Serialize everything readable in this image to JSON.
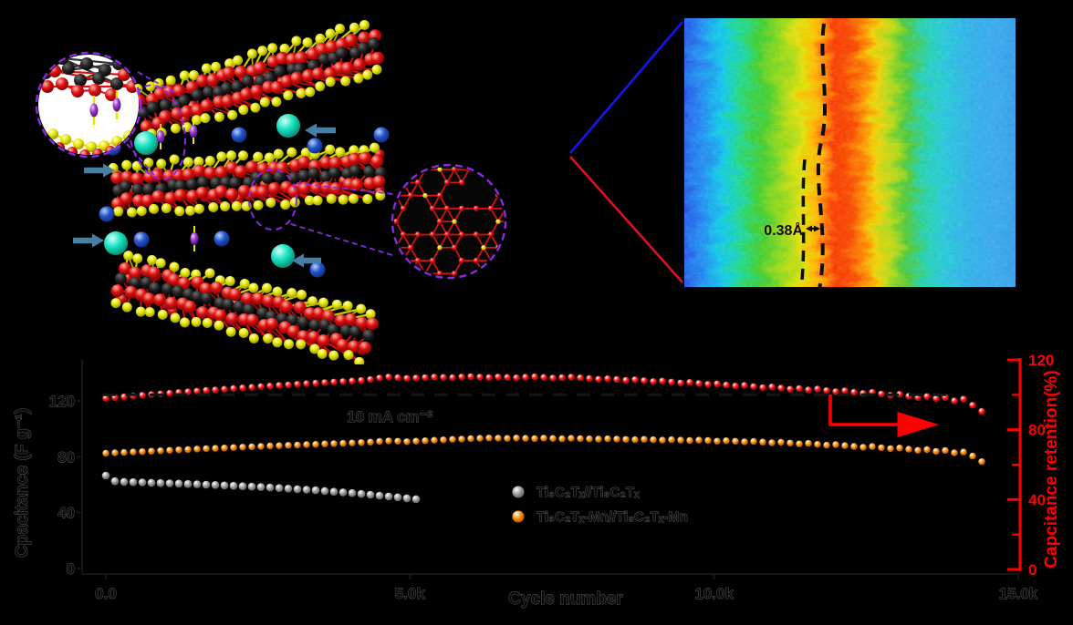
{
  "figure": {
    "background": "#000000",
    "description": "composite-figure-structure-heatmap-cycling-chart"
  },
  "structure_panel": {
    "atom_colors": {
      "red": "#e01010",
      "yellow": "#e6e600",
      "black": "#1f1f1f",
      "cyan": "#17e3c2",
      "blue": "#2255cc",
      "purple": "#9932cc"
    },
    "arrow_color": "#4a7fa5",
    "inset_border_color": "#8a2be2"
  },
  "heatmap_panel": {
    "annotation": "0.38Å",
    "dashed_line_color": "#0d0d0d",
    "zoom_line_top_color": "#1515ee",
    "zoom_line_bottom_color": "#dd1122",
    "gradient_stops": [
      [
        0.0,
        "#1040c8"
      ],
      [
        0.05,
        "#2255e8"
      ],
      [
        0.12,
        "#2090f0"
      ],
      [
        0.17,
        "#10c8e8"
      ],
      [
        0.22,
        "#20d890"
      ],
      [
        0.27,
        "#40cc30"
      ],
      [
        0.33,
        "#98d818"
      ],
      [
        0.38,
        "#e0e008"
      ],
      [
        0.42,
        "#ffb400"
      ],
      [
        0.45,
        "#ff7000"
      ],
      [
        0.47,
        "#f83c04"
      ],
      [
        0.51,
        "#f84a02"
      ],
      [
        0.55,
        "#fc9002"
      ],
      [
        0.58,
        "#f0d006"
      ],
      [
        0.62,
        "#b0d818"
      ],
      [
        0.66,
        "#50c838"
      ],
      [
        0.71,
        "#28d0a8"
      ],
      [
        0.76,
        "#28c8d8"
      ],
      [
        0.83,
        "#30b0e8"
      ],
      [
        0.9,
        "#38a8ec"
      ],
      [
        1.0,
        "#3098e8"
      ]
    ]
  },
  "chart_data": {
    "type": "scatter",
    "title": "",
    "xlabel": "Cycle number",
    "ylabel_left": "Cpacitance (F g⁻¹)",
    "ylabel_right": "Capcitance retention(%)",
    "annotation": "10 mA cm⁻²",
    "x_ticks": [
      "0.0",
      "5.0k",
      "10.0k",
      "15.0k"
    ],
    "x_tick_values": [
      0,
      5000,
      10000,
      15000
    ],
    "y_ticks_left": [
      0,
      40,
      80,
      120
    ],
    "y_ticks_right": [
      0,
      40,
      80,
      120
    ],
    "y_minor_ticks_right": [
      20,
      60,
      100
    ],
    "xlim": [
      0,
      15000
    ],
    "ylim_left": [
      0,
      158
    ],
    "ylim_right": [
      0,
      127
    ],
    "grid": false,
    "legend_position": "center-right",
    "legend": [
      {
        "label": "Ti₃C₂Tₓ//Ti₃C₂Tₓ",
        "color": "#9a9a9a"
      },
      {
        "label": "Ti₃C₂Tₓ-Mn//Ti₃C₂Tₓ-Mn",
        "color": "#ff8c00"
      }
    ],
    "reference_line": {
      "axis": "right",
      "value": 100,
      "style": "dashed-black"
    },
    "retention_axis_arrow_color": "#fe0000",
    "series": [
      {
        "name": "Ti₃C₂Tₓ//Ti₃C₂Tₓ capacitance",
        "axis": "left",
        "color": "#9a9a9a",
        "x": [
          0,
          150,
          300,
          450,
          600,
          750,
          900,
          1050,
          1200,
          1350,
          1500,
          1650,
          1800,
          1950,
          2100,
          2250,
          2400,
          2550,
          2700,
          2850,
          3000,
          3150,
          3300,
          3450,
          3600,
          3750,
          3900,
          4050,
          4200,
          4350,
          4500,
          4650,
          4800,
          4950,
          5100
        ],
        "y": [
          66.5,
          62.5,
          62.0,
          61.8,
          61.6,
          61.4,
          61.2,
          61.0,
          60.8,
          60.5,
          60.3,
          60.0,
          59.8,
          59.5,
          59.2,
          58.9,
          58.6,
          58.3,
          58.0,
          57.6,
          57.2,
          56.8,
          56.4,
          56.0,
          55.5,
          55.0,
          54.5,
          54.0,
          53.4,
          52.8,
          52.2,
          51.6,
          51.0,
          50.3,
          49.6
        ]
      },
      {
        "name": "Ti₃C₂Tₓ-Mn//Ti₃C₂Tₓ-Mn capacitance",
        "axis": "left",
        "color": "#ff8c00",
        "x": [
          0,
          150,
          300,
          450,
          600,
          750,
          900,
          1050,
          1200,
          1350,
          1500,
          1650,
          1800,
          1950,
          2100,
          2250,
          2400,
          2550,
          2700,
          2850,
          3000,
          3150,
          3300,
          3450,
          3600,
          3750,
          3900,
          4050,
          4200,
          4350,
          4500,
          4650,
          4800,
          4950,
          5100,
          5250,
          5400,
          5550,
          5700,
          5850,
          6000,
          6150,
          6300,
          6450,
          6600,
          6750,
          6900,
          7050,
          7200,
          7350,
          7500,
          7650,
          7800,
          7950,
          8100,
          8250,
          8400,
          8550,
          8700,
          8850,
          9000,
          9150,
          9300,
          9450,
          9600,
          9750,
          9900,
          10050,
          10200,
          10350,
          10500,
          10650,
          10800,
          10950,
          11100,
          11250,
          11400,
          11550,
          11700,
          11850,
          12000,
          12150,
          12300,
          12450,
          12600,
          12750,
          12900,
          13050,
          13200,
          13350,
          13500,
          13650,
          13800,
          13950,
          14100,
          14250,
          14400
        ],
        "y": [
          82.5,
          82.8,
          83.1,
          83.4,
          83.7,
          84.0,
          84.3,
          84.6,
          84.9,
          85.2,
          85.5,
          85.8,
          86.0,
          86.3,
          86.6,
          86.9,
          87.1,
          87.4,
          87.7,
          87.9,
          88.2,
          88.4,
          88.7,
          88.9,
          89.2,
          89.4,
          89.6,
          89.9,
          90.1,
          90.5,
          91.0,
          91.4,
          91.1,
          90.8,
          91.2,
          91.5,
          91.8,
          92.1,
          92.4,
          92.7,
          93.0,
          93.2,
          93.4,
          93.3,
          93.1,
          93.4,
          93.2,
          93.0,
          93.3,
          93.1,
          92.9,
          93.2,
          93.0,
          92.8,
          92.6,
          92.9,
          92.7,
          92.4,
          92.2,
          92.5,
          92.2,
          91.9,
          92.2,
          91.9,
          91.6,
          91.9,
          91.6,
          91.2,
          91.5,
          91.1,
          90.7,
          91.0,
          90.5,
          90.0,
          90.4,
          89.8,
          89.2,
          89.6,
          88.9,
          88.3,
          88.7,
          88.0,
          87.4,
          86.8,
          87.3,
          86.5,
          85.8,
          86.3,
          85.4,
          84.6,
          85.1,
          83.9,
          84.5,
          82.8,
          83.4,
          80.5,
          76.5
        ]
      },
      {
        "name": "capacitance retention",
        "axis": "right",
        "color": "#fe1010",
        "x": [
          0,
          150,
          300,
          450,
          600,
          750,
          900,
          1050,
          1200,
          1350,
          1500,
          1650,
          1800,
          1950,
          2100,
          2250,
          2400,
          2550,
          2700,
          2850,
          3000,
          3150,
          3300,
          3450,
          3600,
          3750,
          3900,
          4050,
          4200,
          4350,
          4500,
          4650,
          4800,
          4950,
          5100,
          5250,
          5400,
          5550,
          5700,
          5850,
          6000,
          6150,
          6300,
          6450,
          6600,
          6750,
          6900,
          7050,
          7200,
          7350,
          7500,
          7650,
          7800,
          7950,
          8100,
          8250,
          8400,
          8550,
          8700,
          8850,
          9000,
          9150,
          9300,
          9450,
          9600,
          9750,
          9900,
          10050,
          10200,
          10350,
          10500,
          10650,
          10800,
          10950,
          11100,
          11250,
          11400,
          11550,
          11700,
          11850,
          12000,
          12150,
          12300,
          12450,
          12600,
          12750,
          12900,
          13050,
          13200,
          13350,
          13500,
          13650,
          13800,
          13950,
          14100,
          14250,
          14400
        ],
        "y": [
          98.0,
          98.4,
          98.8,
          99.3,
          99.7,
          100.1,
          100.5,
          100.9,
          101.3,
          101.7,
          102.1,
          102.5,
          102.8,
          103.2,
          103.6,
          104.0,
          104.3,
          104.7,
          105.0,
          105.4,
          105.7,
          106.0,
          106.4,
          106.7,
          107.0,
          107.3,
          107.6,
          107.9,
          108.2,
          108.8,
          109.6,
          110.2,
          109.8,
          109.4,
          109.6,
          109.9,
          110.1,
          110.0,
          109.8,
          110.2,
          110.4,
          110.1,
          109.9,
          110.2,
          110.0,
          109.7,
          110.1,
          110.3,
          110.0,
          109.6,
          109.9,
          110.1,
          109.7,
          109.3,
          108.9,
          109.2,
          108.8,
          108.3,
          108.6,
          108.1,
          107.6,
          107.9,
          107.3,
          106.8,
          107.1,
          106.5,
          106.0,
          106.3,
          105.6,
          105.0,
          105.4,
          104.7,
          104.1,
          104.5,
          103.8,
          103.2,
          103.6,
          102.8,
          103.3,
          102.4,
          101.8,
          102.3,
          101.5,
          100.8,
          101.4,
          100.5,
          99.7,
          100.3,
          99.2,
          98.4,
          99.0,
          97.8,
          98.5,
          96.5,
          97.5,
          94.0,
          90.5
        ]
      }
    ]
  }
}
